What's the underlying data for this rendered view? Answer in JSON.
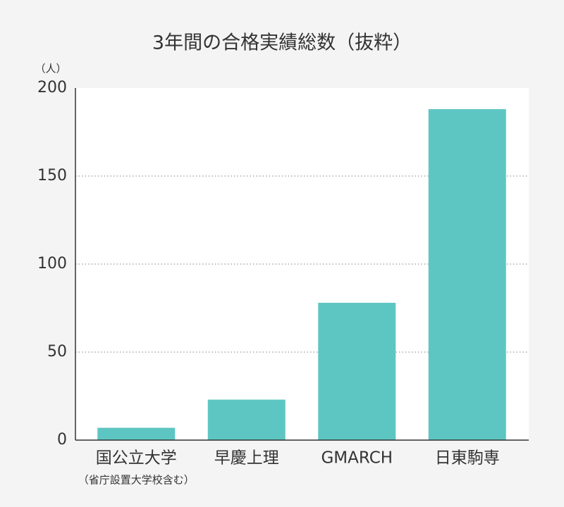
{
  "chart_data": {
    "type": "bar",
    "title": "3年間の合格実績総数（抜粋）",
    "y_unit_label": "（人）",
    "categories": [
      "国公立大学",
      "早慶上理",
      "GMARCH",
      "日東駒専"
    ],
    "category_notes": [
      "（省庁設置大学校含む）",
      null,
      null,
      null
    ],
    "values": [
      7,
      23,
      78,
      188
    ],
    "color": "#5ec6c2",
    "ylim": [
      0,
      200
    ],
    "yticks": [
      0,
      50,
      100,
      150,
      200
    ],
    "grid": true
  }
}
